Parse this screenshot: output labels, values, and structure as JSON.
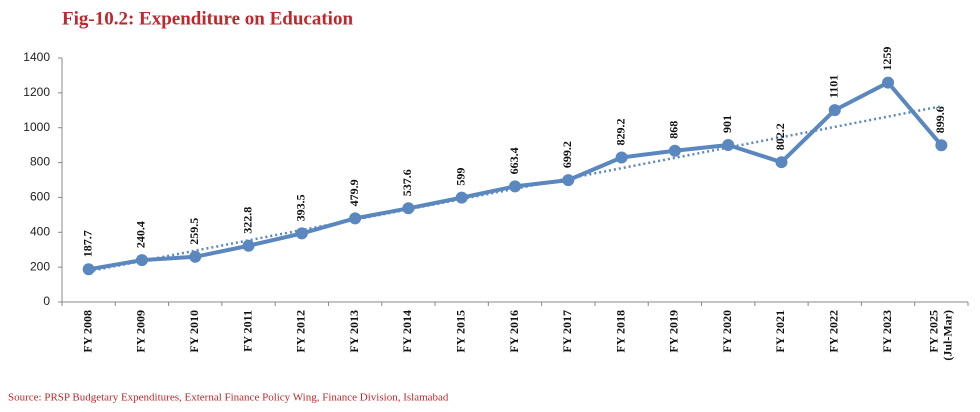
{
  "chart_data": {
    "type": "line",
    "title": "Fig-10.2: Expenditure on Education",
    "source": "Source: PRSP Budgetary Expenditures, External Finance Policy Wing, Finance Division, Islamabad",
    "categories": [
      "FY 2008",
      "FY 2009",
      "FY 2010",
      "FY 2011",
      "FY 2012",
      "FY 2013",
      "FY 2014",
      "FY 2015",
      "FY 2016",
      "FY 2017",
      "FY 2018",
      "FY 2019",
      "FY 2020",
      "FY 2021",
      "FY 2022",
      "FY 2023",
      "FY 2025 (Jul-Mar)"
    ],
    "values": [
      187.7,
      240.4,
      259.5,
      322.8,
      393.5,
      479.9,
      537.6,
      599,
      663.4,
      699.2,
      829.2,
      868,
      901,
      802.2,
      1101,
      1259,
      899.6
    ],
    "color": "#5b87bf",
    "trendline": "linear",
    "ylim": [
      0,
      1400
    ],
    "yticks": [
      0,
      200,
      400,
      600,
      800,
      1000,
      1200,
      1400
    ],
    "grid": false
  }
}
